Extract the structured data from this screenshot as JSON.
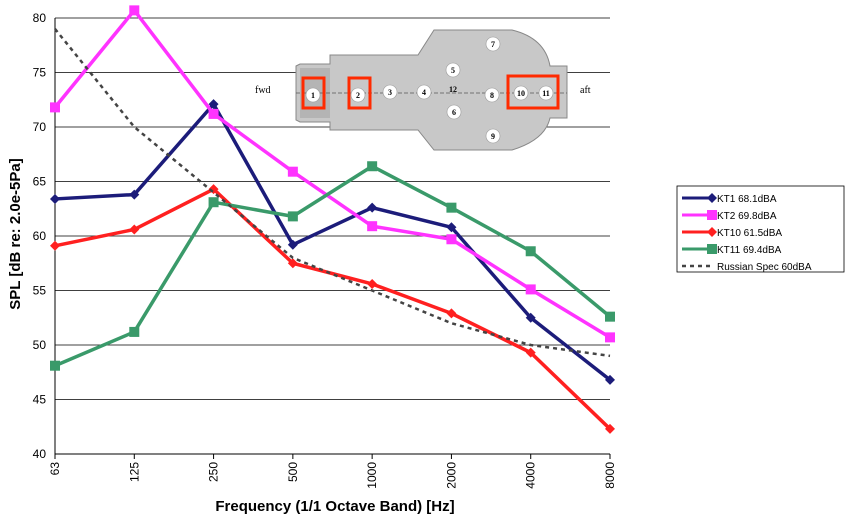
{
  "chart_data": {
    "type": "line",
    "title": "",
    "xlabel": "Frequency (1/1 Octave Band) [Hz]",
    "ylabel": "SPL [dB re: 2.0e-5Pa]",
    "x": [
      "63",
      "125",
      "250",
      "500",
      "1000",
      "2000",
      "4000",
      "8000"
    ],
    "ylim": [
      40,
      80
    ],
    "yticks": [
      40,
      45,
      50,
      55,
      60,
      65,
      70,
      75,
      80
    ],
    "grid": "horizontal",
    "legend_position": "right",
    "series": [
      {
        "name": "KT1 68.1dBA",
        "color": "#1c1c7a",
        "marker": "diamond",
        "dash": false,
        "values": [
          63.4,
          63.8,
          72.1,
          59.2,
          62.6,
          60.8,
          52.5,
          46.8
        ]
      },
      {
        "name": "KT2 69.8dBA",
        "color": "#ff33ff",
        "marker": "square",
        "dash": false,
        "values": [
          71.8,
          80.7,
          71.2,
          65.9,
          60.9,
          59.7,
          55.1,
          50.7
        ]
      },
      {
        "name": "KT10 61.5dBA",
        "color": "#ff2020",
        "marker": "diamond",
        "dash": false,
        "values": [
          59.1,
          60.6,
          64.3,
          57.5,
          55.6,
          52.9,
          49.3,
          42.3
        ]
      },
      {
        "name": "KT11 69.4dBA",
        "color": "#3a9a6a",
        "marker": "square",
        "dash": false,
        "values": [
          48.1,
          51.2,
          63.1,
          61.8,
          66.4,
          62.6,
          58.6,
          52.6
        ]
      },
      {
        "name": "Russian Spec 60dBA",
        "color": "#444444",
        "marker": "none",
        "dash": true,
        "values": [
          79.0,
          70.0,
          64.0,
          58.0,
          55.0,
          52.0,
          50.0,
          49.0
        ]
      }
    ]
  },
  "inset": {
    "fwd_label": "fwd",
    "aft_label": "aft",
    "positions": [
      "1",
      "2",
      "3",
      "4",
      "5",
      "6",
      "7",
      "8",
      "9",
      "10",
      "11",
      "12"
    ]
  }
}
